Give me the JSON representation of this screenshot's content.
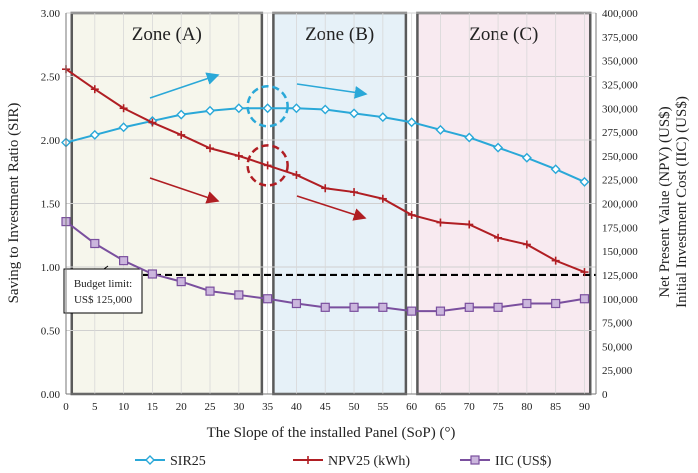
{
  "chart_data": {
    "type": "line",
    "title": "",
    "xlabel": "The Slope of the installed Panel (SoP) (°)",
    "ylabel_left": "Saving to Investment Ratio (SIR)",
    "ylabel_right": [
      "Net Present Value (NPV) (US$)",
      "Initial Investment Cost (IIC) (US$)"
    ],
    "x": [
      0,
      5,
      10,
      15,
      20,
      25,
      30,
      35,
      40,
      45,
      50,
      55,
      60,
      65,
      70,
      75,
      80,
      85,
      90
    ],
    "x_ticks": [
      "0",
      "5",
      "10",
      "15",
      "20",
      "25",
      "30",
      "35",
      "40",
      "45",
      "50",
      "55",
      "60",
      "65",
      "70",
      "75",
      "80",
      "85",
      "90"
    ],
    "xlim": [
      0,
      92
    ],
    "ylim_left": [
      0,
      3
    ],
    "left_ticks": [
      "0.00",
      "0.50",
      "1.00",
      "1.50",
      "2.00",
      "2.50",
      "3.00"
    ],
    "ylim_right": [
      0,
      400000
    ],
    "right_ticks": [
      "0",
      "25,000",
      "50,000",
      "75,000",
      "100,000",
      "125,000",
      "150,000",
      "175,000",
      "200,000",
      "225,000",
      "250,000",
      "275,000",
      "300,000",
      "325,000",
      "350,000",
      "375,000",
      "400,000"
    ],
    "grid": "horizontal",
    "series": [
      {
        "name": "SIR25",
        "axis": "left",
        "color": "#2aa8d8",
        "marker": "diamond",
        "values": [
          1.98,
          2.04,
          2.1,
          2.15,
          2.2,
          2.23,
          2.25,
          2.25,
          2.25,
          2.24,
          2.21,
          2.18,
          2.14,
          2.08,
          2.02,
          1.94,
          1.86,
          1.77,
          1.67
        ]
      },
      {
        "name": "NPV25 (kWh)",
        "axis": "right",
        "color": "#b01e23",
        "marker": "plus",
        "values": [
          341000,
          320000,
          300000,
          285000,
          272000,
          258000,
          250000,
          240000,
          230000,
          216000,
          212000,
          205000,
          188000,
          180000,
          178000,
          164000,
          157000,
          140000,
          128000
        ]
      },
      {
        "name": "IIC (US$)",
        "axis": "right",
        "color": "#7a4f9e",
        "marker": "square",
        "values": [
          181000,
          158000,
          140000,
          126000,
          118000,
          108000,
          104000,
          100000,
          95000,
          91000,
          91000,
          91000,
          87000,
          87000,
          91000,
          91000,
          95000,
          95000,
          100000
        ]
      }
    ],
    "zones": [
      {
        "label": "Zone (A)",
        "x_range": [
          1,
          34
        ],
        "fill": "#f6f6ec"
      },
      {
        "label": "Zone (B)",
        "x_range": [
          36,
          59
        ],
        "fill": "#e6f1f8"
      },
      {
        "label": "Zone (C)",
        "x_range": [
          61,
          91
        ],
        "fill": "#f8eaf0"
      }
    ],
    "budget_line": {
      "value": 125000,
      "label_line1": "Budget limit:",
      "label_line2": "US$ 125,000"
    },
    "legend_position": "bottom"
  }
}
